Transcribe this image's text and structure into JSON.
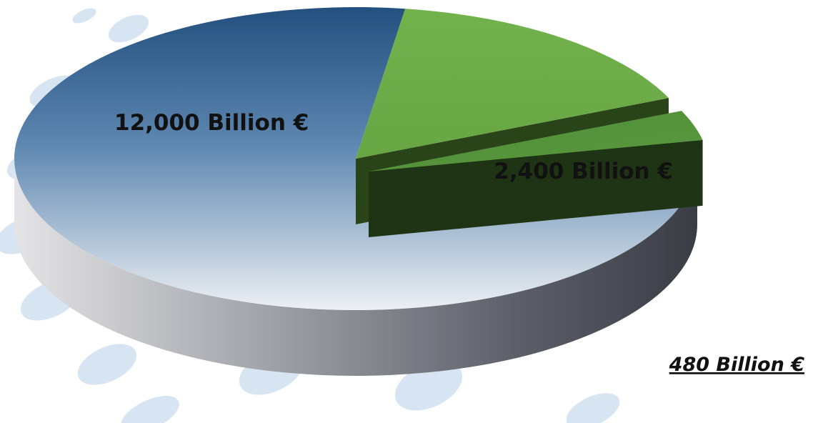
{
  "chart_data": {
    "type": "pie",
    "three_d": true,
    "title": "",
    "slices": [
      {
        "label": "12,000 Billion €",
        "value": 12000,
        "color": "#3f6a97"
      },
      {
        "label": "2,400 Billion €",
        "value": 2400,
        "color": "#6fae4a"
      },
      {
        "label": "480 Billion €",
        "value": 480,
        "color": "#4a8a35",
        "exploded": true
      }
    ]
  }
}
